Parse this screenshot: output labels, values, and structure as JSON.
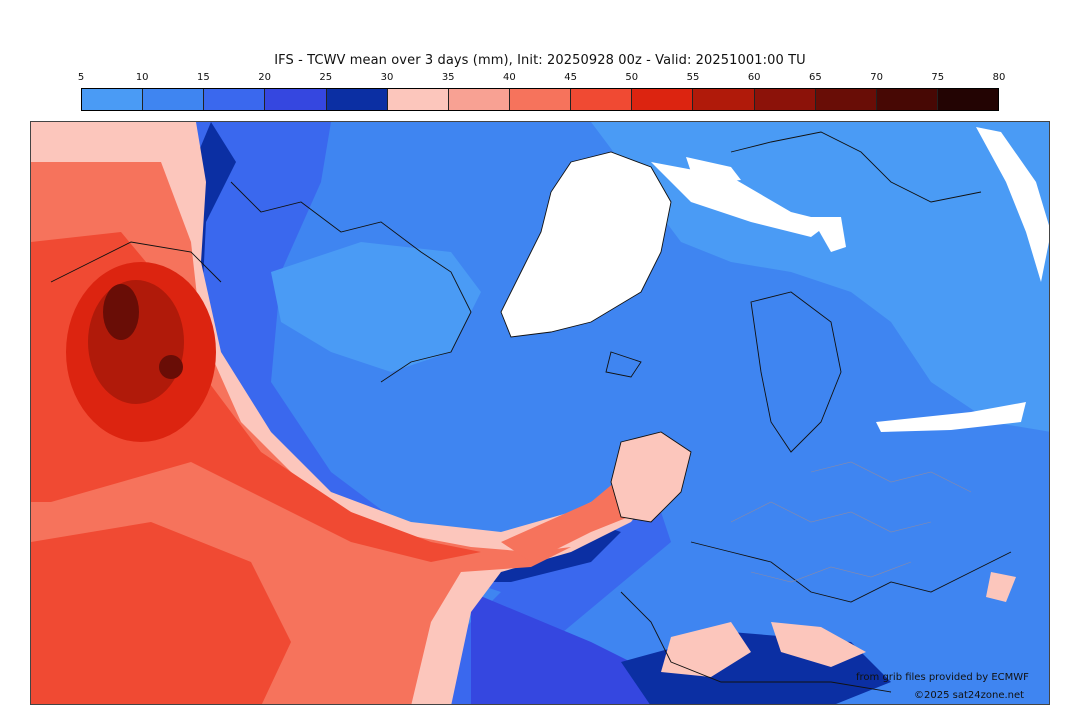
{
  "title": "IFS - TCWV mean over 3 days (mm), Init: 20250928 00z - Valid: 20251001:00 TU",
  "legend": {
    "ticks": [
      "5",
      "10",
      "15",
      "20",
      "25",
      "30",
      "35",
      "40",
      "45",
      "50",
      "55",
      "60",
      "65",
      "70",
      "75",
      "80"
    ],
    "colors": [
      "#4a9bf5",
      "#3f85f1",
      "#3a68ee",
      "#3547e0",
      "#0b2fa3",
      "#fcc6bc",
      "#f8a193",
      "#f6735c",
      "#f04a33",
      "#dc2410",
      "#b01a0a",
      "#8c1209",
      "#690d06",
      "#470804",
      "#230403"
    ]
  },
  "credits": {
    "line1": "from grib files provided by ECMWF",
    "line2": "©2025 sat24zone.net"
  }
}
